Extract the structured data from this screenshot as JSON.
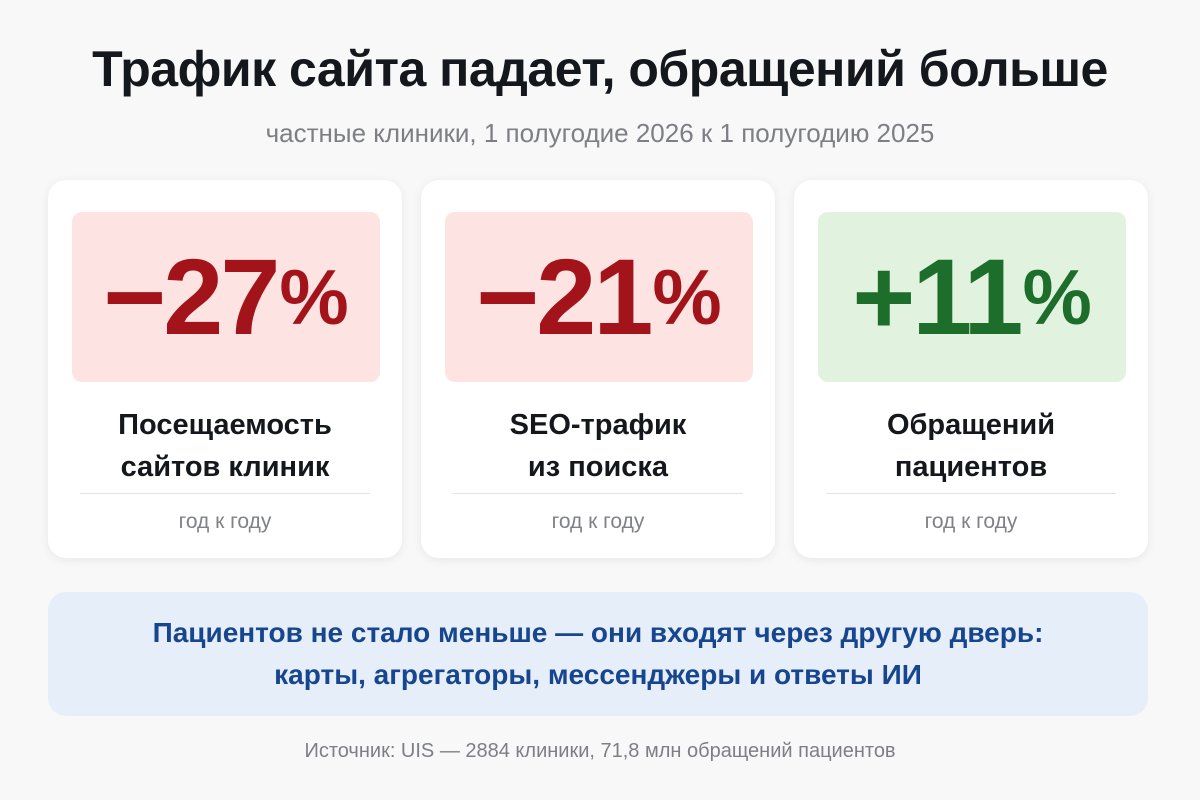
{
  "header": {
    "title": "Трафик сайта падает, обращений больше",
    "subtitle": "частные клиники, 1 полугодие 2026 к 1 полугодию 2025"
  },
  "cards": [
    {
      "value": "−27",
      "unit": "%",
      "trend": "negative",
      "label_line1": "Посещаемость",
      "label_line2": "сайтов клиник",
      "note": "год к году"
    },
    {
      "value": "−21",
      "unit": "%",
      "trend": "negative",
      "label_line1": "SEO-трафик",
      "label_line2": "из поиска",
      "note": "год к году"
    },
    {
      "value": "+11",
      "unit": "%",
      "trend": "positive",
      "label_line1": "Обращений",
      "label_line2": "пациентов",
      "note": "год к году"
    }
  ],
  "insight": {
    "line1": "Пациентов не стало меньше — они входят через другую дверь:",
    "line2": "карты, агрегаторы, мессенджеры и ответы ИИ"
  },
  "source": "Источник: UIS — 2884 клиники, 71,8 млн обращений пациентов",
  "colors": {
    "negative_text": "#a3141a",
    "negative_bg": "#fde3e2",
    "positive_text": "#1c6e2a",
    "positive_bg": "#e1f2de",
    "insight_text": "#17468e",
    "insight_bg": "#e6eefa"
  }
}
